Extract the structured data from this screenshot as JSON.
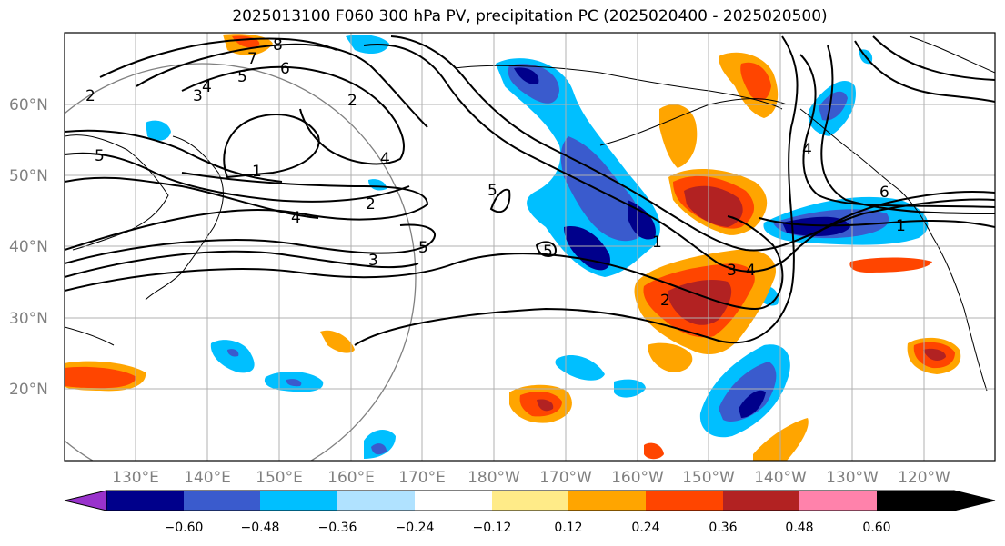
{
  "title": "2025013100 F060 300 hPa PV, precipitation PC (2025020400 - 2025020500)",
  "lat_labels": [
    "60°N",
    "50°N",
    "40°N",
    "30°N",
    "20°N"
  ],
  "lon_labels": [
    "130°E",
    "140°E",
    "150°E",
    "160°E",
    "170°E",
    "180°W",
    "170°W",
    "160°W",
    "150°W",
    "140°W",
    "130°W",
    "120°W"
  ],
  "contour_labels": [
    "8",
    "7",
    "6",
    "5",
    "4",
    "3",
    "2",
    "5",
    "1",
    "4",
    "2",
    "5",
    "4",
    "2",
    "3",
    "5",
    "5",
    "1",
    "3",
    "4",
    "2",
    "4",
    "6",
    "1"
  ],
  "colorbar": {
    "tick_labels": [
      "−0.60",
      "−0.48",
      "−0.36",
      "−0.24",
      "−0.12",
      "0.12",
      "0.24",
      "0.36",
      "0.48",
      "0.60"
    ],
    "colors": [
      "#9932cc",
      "#00008b",
      "#3a5bcd",
      "#00bfff",
      "#b0e2ff",
      "#ffffff",
      "#ffeb88",
      "#ffa500",
      "#ff4500",
      "#b22222",
      "#ff82ab"
    ]
  }
}
